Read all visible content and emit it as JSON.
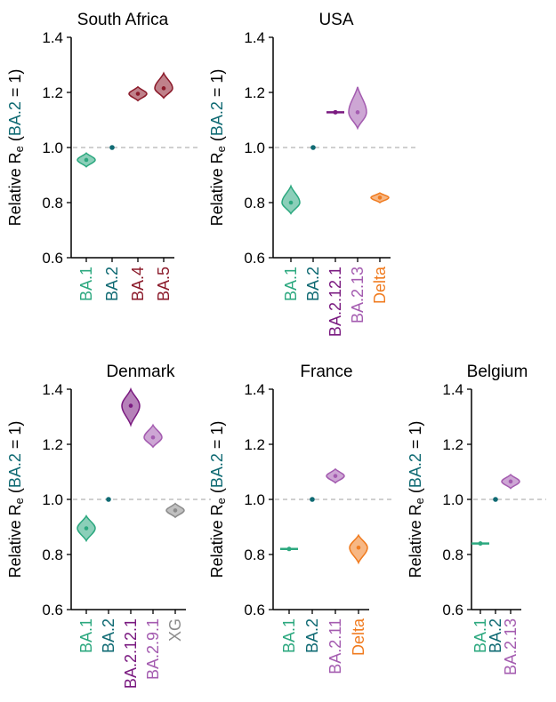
{
  "colors": {
    "BA.1": "#2ca87f",
    "BA.2": "#0f6a73",
    "BA.4": "#8b1a2a",
    "BA.5": "#8b1a2a",
    "BA.2.12.1": "#7a1a80",
    "BA.2.13": "#a45cb0",
    "BA.2.11": "#a45cb0",
    "BA.2.9.1": "#a45cb0",
    "Delta": "#f07b1f",
    "XG": "#8c8c8c",
    "axis": "#000000",
    "reference_line": "#c0c0c0"
  },
  "chart_data": [
    {
      "type": "violin",
      "title": "South Africa",
      "ylabel": {
        "prefix": "Relative R",
        "sub": "e",
        "open": " (",
        "ref": "BA.2",
        "suffix": " = 1)"
      },
      "ylim": [
        0.6,
        1.4
      ],
      "yticks": [
        "0.6",
        "0.8",
        "1.0",
        "1.2",
        "1.4"
      ],
      "reference": 1.0,
      "categories": [
        "BA.1",
        "BA.2",
        "BA.4",
        "BA.5"
      ],
      "values": [
        0.955,
        1.0,
        1.195,
        1.215
      ],
      "ranges": [
        [
          0.93,
          0.98
        ],
        [
          1.0,
          1.0
        ],
        [
          1.17,
          1.22
        ],
        [
          1.18,
          1.27
        ]
      ]
    },
    {
      "type": "violin",
      "title": "USA",
      "ylabel": {
        "prefix": "Relative R",
        "sub": "e",
        "open": " (",
        "ref": "BA.2",
        "suffix": " = 1)"
      },
      "ylim": [
        0.6,
        1.4
      ],
      "yticks": [
        "0.6",
        "0.8",
        "1.0",
        "1.2",
        "1.4"
      ],
      "reference": 1.0,
      "categories": [
        "BA.1",
        "BA.2",
        "BA.2.12.1",
        "BA.2.13",
        "Delta"
      ],
      "values": [
        0.8,
        1.0,
        1.128,
        1.128,
        0.818
      ],
      "ranges": [
        [
          0.76,
          0.86
        ],
        [
          1.0,
          1.0
        ],
        [
          1.125,
          1.132
        ],
        [
          1.07,
          1.22
        ],
        [
          0.8,
          0.835
        ]
      ]
    },
    {
      "type": "violin",
      "title": "Denmark",
      "ylabel": {
        "prefix": "Relative R",
        "sub": "e",
        "open": " (",
        "ref": "BA.2",
        "suffix": " = 1)"
      },
      "ylim": [
        0.6,
        1.4
      ],
      "yticks": [
        "0.6",
        "0.8",
        "1.0",
        "1.2",
        "1.4"
      ],
      "reference": 1.0,
      "categories": [
        "BA.1",
        "BA.2",
        "BA.2.12.1",
        "BA.2.9.1",
        "XG"
      ],
      "values": [
        0.895,
        1.0,
        1.34,
        1.225,
        0.96
      ],
      "ranges": [
        [
          0.85,
          0.94
        ],
        [
          1.0,
          1.0
        ],
        [
          1.27,
          1.4
        ],
        [
          1.19,
          1.27
        ],
        [
          0.935,
          0.985
        ]
      ]
    },
    {
      "type": "violin",
      "title": "France",
      "ylabel": {
        "prefix": "Relative R",
        "sub": "e",
        "open": " (",
        "ref": "BA.2",
        "suffix": " = 1)"
      },
      "ylim": [
        0.6,
        1.4
      ],
      "yticks": [
        "0.6",
        "0.8",
        "1.0",
        "1.2",
        "1.4"
      ],
      "reference": 1.0,
      "categories": [
        "BA.1",
        "BA.2",
        "BA.2.11",
        "Delta"
      ],
      "values": [
        0.82,
        1.0,
        1.085,
        0.825
      ],
      "ranges": [
        [
          0.817,
          0.823
        ],
        [
          1.0,
          1.0
        ],
        [
          1.06,
          1.11
        ],
        [
          0.77,
          0.87
        ]
      ]
    },
    {
      "type": "violin",
      "title": "Belgium",
      "ylabel": {
        "prefix": "Relative R",
        "sub": "e",
        "open": " (",
        "ref": "BA.2",
        "suffix": " = 1)"
      },
      "ylim": [
        0.6,
        1.4
      ],
      "yticks": [
        "0.6",
        "0.8",
        "1.0",
        "1.2",
        "1.4"
      ],
      "reference": 1.0,
      "categories": [
        "BA.1",
        "BA.2",
        "BA.2.13"
      ],
      "values": [
        0.84,
        1.0,
        1.065
      ],
      "ranges": [
        [
          0.837,
          0.843
        ],
        [
          1.0,
          1.0
        ],
        [
          1.04,
          1.09
        ]
      ]
    }
  ]
}
